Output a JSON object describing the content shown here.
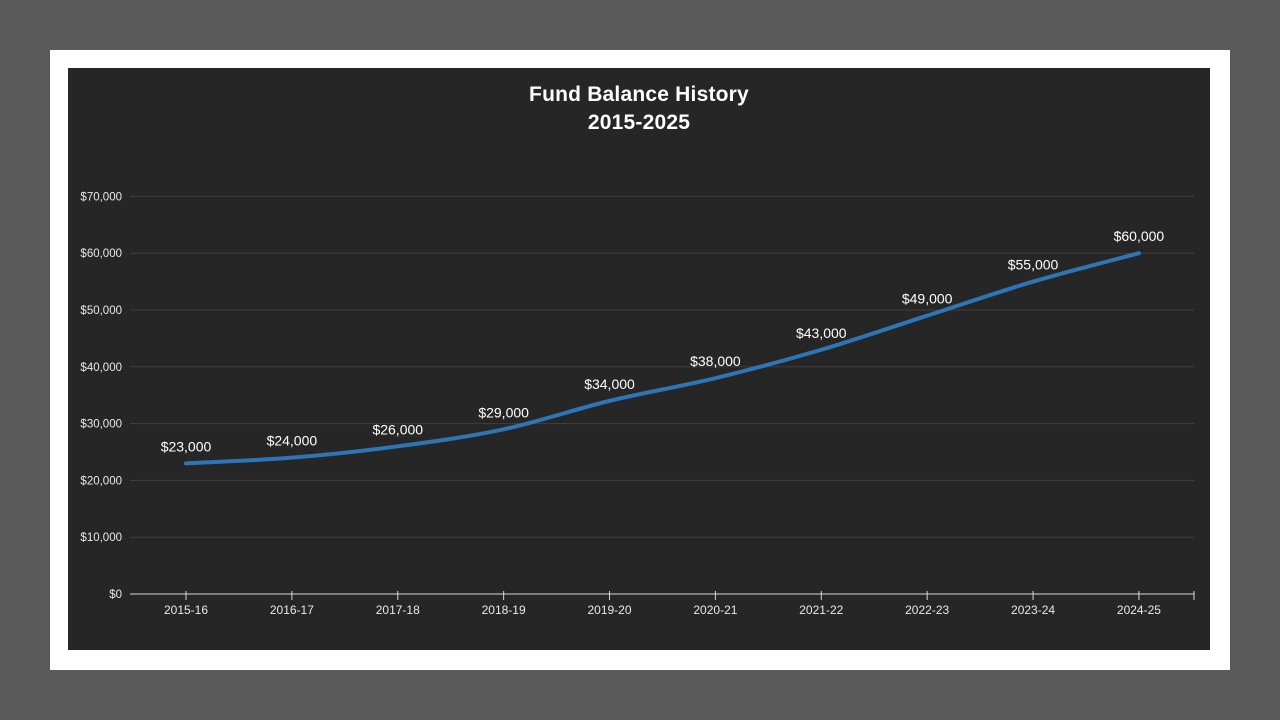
{
  "page": {
    "background_color": "#595959",
    "slide_color": "#ffffff"
  },
  "chart_data": {
    "type": "line",
    "title": "Fund Balance History",
    "subtitle": "2015-2025",
    "categories": [
      "2015-16",
      "2016-17",
      "2017-18",
      "2018-19",
      "2019-20",
      "2020-21",
      "2021-22",
      "2022-23",
      "2023-24",
      "2024-25"
    ],
    "values": [
      23000,
      24000,
      26000,
      29000,
      34000,
      38000,
      43000,
      49000,
      55000,
      60000
    ],
    "data_labels": [
      "$23,000",
      "$24,000",
      "$26,000",
      "$29,000",
      "$34,000",
      "$38,000",
      "$43,000",
      "$49,000",
      "$55,000",
      "$60,000"
    ],
    "y_tick_labels": [
      "$0",
      "$10,000",
      "$20,000",
      "$30,000",
      "$40,000",
      "$50,000",
      "$60,000",
      "$70,000"
    ],
    "ylim": [
      0,
      70000
    ],
    "y_step": 10000,
    "xlabel": "",
    "ylabel": "",
    "grid": true,
    "legend": "none",
    "smoothed_line": true,
    "markers": "none",
    "colors": {
      "line": "#2E75B6",
      "chart_background": "#262626",
      "gridline": "#3F3F3F",
      "axis": "#D6D6D6",
      "tick_label_text": "#E8E8E8",
      "data_label_text": "#FFFFFF",
      "title_text": "#FFFFFF"
    }
  }
}
